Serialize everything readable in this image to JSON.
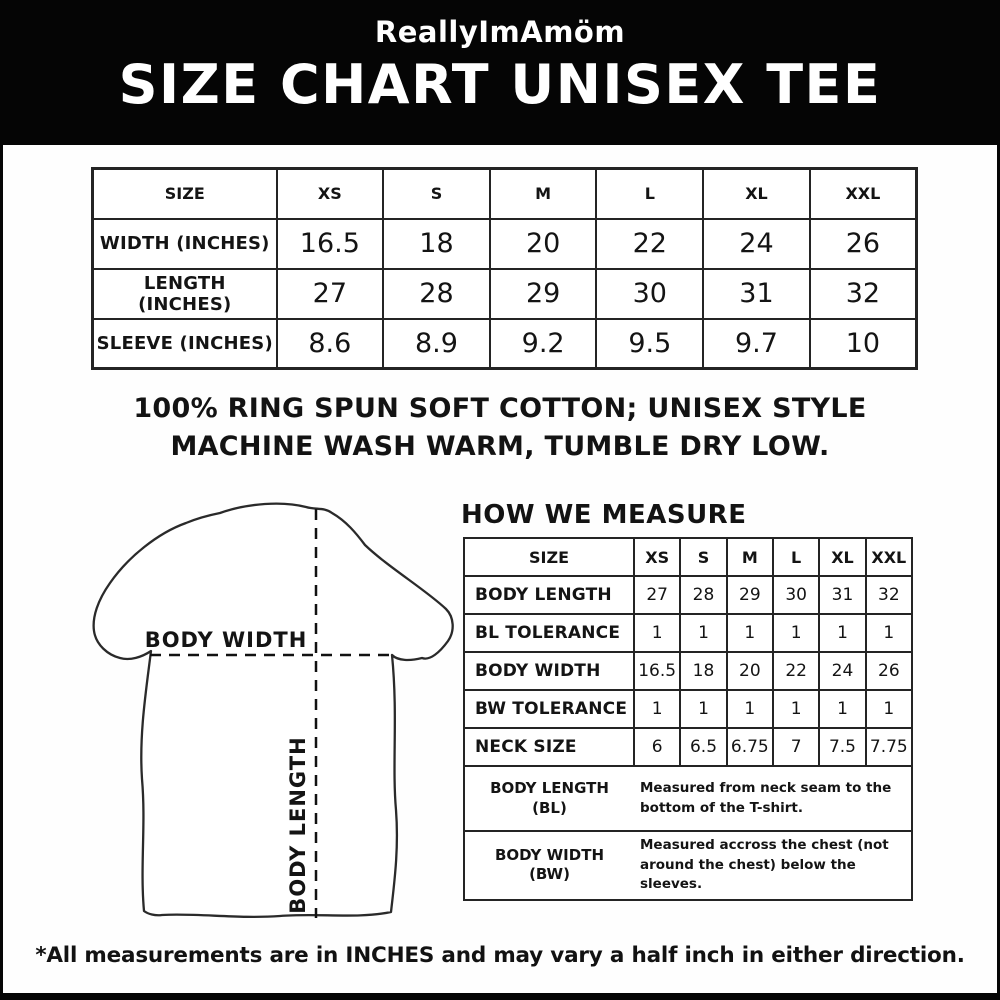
{
  "header": {
    "brand": "ReallyImAmöm",
    "title": "SIZE CHART UNISEX TEE"
  },
  "size_table": {
    "columns": [
      "SIZE",
      "XS",
      "S",
      "M",
      "L",
      "XL",
      "XXL"
    ],
    "rows": [
      {
        "label": "WIDTH (INCHES)",
        "values": [
          "16.5",
          "18",
          "20",
          "22",
          "24",
          "26"
        ]
      },
      {
        "label": "LENGTH (INCHES)",
        "values": [
          "27",
          "28",
          "29",
          "30",
          "31",
          "32"
        ]
      },
      {
        "label": "SLEEVE (INCHES)",
        "values": [
          "8.6",
          "8.9",
          "9.2",
          "9.5",
          "9.7",
          "10"
        ]
      }
    ]
  },
  "care": {
    "line1": "100% RING SPUN SOFT COTTON; UNISEX STYLE",
    "line2": "MACHINE WASH WARM, TUMBLE DRY LOW."
  },
  "diagram": {
    "width_label": "BODY WIDTH",
    "length_label": "BODY LENGTH"
  },
  "measure": {
    "heading": "HOW WE MEASURE",
    "columns": [
      "SIZE",
      "XS",
      "S",
      "M",
      "L",
      "XL",
      "XXL"
    ],
    "rows": [
      {
        "label": "BODY LENGTH",
        "values": [
          "27",
          "28",
          "29",
          "30",
          "31",
          "32"
        ]
      },
      {
        "label": "BL TOLERANCE",
        "values": [
          "1",
          "1",
          "1",
          "1",
          "1",
          "1"
        ]
      },
      {
        "label": "BODY WIDTH",
        "values": [
          "16.5",
          "18",
          "20",
          "22",
          "24",
          "26"
        ]
      },
      {
        "label": "BW TOLERANCE",
        "values": [
          "1",
          "1",
          "1",
          "1",
          "1",
          "1"
        ]
      },
      {
        "label": "NECK SIZE",
        "values": [
          "6",
          "6.5",
          "6.75",
          "7",
          "7.5",
          "7.75"
        ]
      }
    ],
    "definitions": [
      {
        "term": "BODY LENGTH",
        "abbr": "(BL)",
        "description": "Measured from neck seam to the bottom of the T-shirt."
      },
      {
        "term": "BODY WIDTH",
        "abbr": "(BW)",
        "description": "Measured accross the chest (not around the chest) below the sleeves."
      }
    ]
  },
  "footnote": {
    "text": "*All measurements are in INCHES and may vary a half inch in either direction."
  },
  "colors": {
    "banner": "#050505",
    "text": "#141414",
    "background": "#fefefe"
  }
}
